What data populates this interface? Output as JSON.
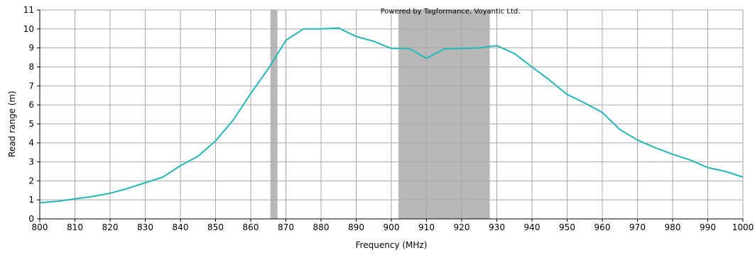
{
  "colors": {
    "series": "#20b8b8",
    "band": "#b8b8b8",
    "grid": "#a8a8a8",
    "axis": "#000000",
    "background": "#ffffff"
  },
  "chart_data": {
    "type": "line",
    "title": "",
    "watermark": "Powered by Tagformance, Voyantic Ltd.",
    "xlabel": "Frequency (MHz)",
    "ylabel": "Read range (m)",
    "xlim": [
      800,
      1000
    ],
    "ylim": [
      0,
      11
    ],
    "x_ticks": [
      800,
      810,
      820,
      830,
      840,
      850,
      860,
      870,
      880,
      890,
      900,
      910,
      920,
      930,
      940,
      950,
      960,
      970,
      980,
      990,
      1000
    ],
    "y_ticks": [
      0,
      1,
      2,
      3,
      4,
      5,
      6,
      7,
      8,
      9,
      10,
      11
    ],
    "grid": true,
    "legend": "none",
    "bands": [
      {
        "x_start": 865.6,
        "x_end": 867.6
      },
      {
        "x_start": 902,
        "x_end": 928
      }
    ],
    "series": [
      {
        "x": [
          800,
          805,
          810,
          815,
          820,
          825,
          830,
          835,
          840,
          845,
          850,
          855,
          860,
          865,
          870,
          875,
          880,
          885,
          890,
          895,
          900,
          905,
          910,
          915,
          920,
          925,
          930,
          935,
          940,
          945,
          950,
          955,
          960,
          965,
          970,
          975,
          980,
          985,
          990,
          995,
          1000
        ],
        "values": [
          0.85,
          0.92,
          1.05,
          1.18,
          1.35,
          1.6,
          1.9,
          2.2,
          2.8,
          3.3,
          4.1,
          5.2,
          6.6,
          7.9,
          9.4,
          10.0,
          10.0,
          10.05,
          9.6,
          9.35,
          8.97,
          8.97,
          8.45,
          8.95,
          8.97,
          9.0,
          9.12,
          8.7,
          8.0,
          7.3,
          6.55,
          6.1,
          5.6,
          4.7,
          4.15,
          3.75,
          3.4,
          3.1,
          2.7,
          2.5,
          2.2
        ]
      }
    ]
  }
}
